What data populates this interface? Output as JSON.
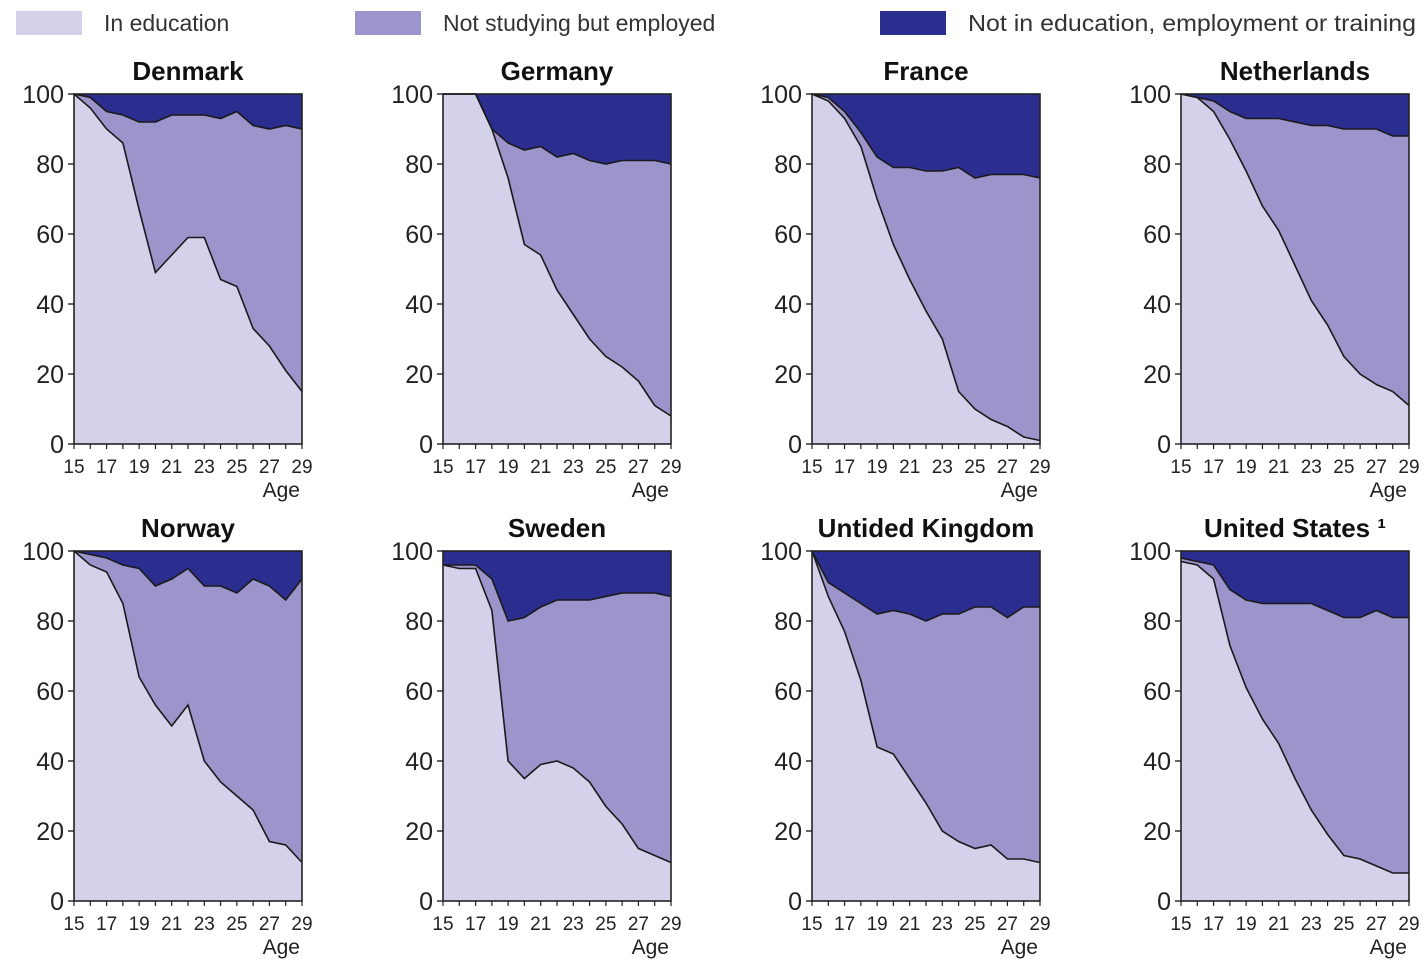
{
  "legend": [
    {
      "label": "In education",
      "color": "#d4d1ea"
    },
    {
      "label": "Not studying but employed",
      "color": "#9c95cb"
    },
    {
      "label": "Not in education, employment or training",
      "color": "#2b2d8f"
    }
  ],
  "chart_data": [
    {
      "type": "area",
      "stacked": true,
      "title": "Denmark",
      "xlabel": "Age",
      "ylabel": "",
      "x": [
        15,
        16,
        17,
        18,
        19,
        20,
        21,
        22,
        23,
        24,
        25,
        26,
        27,
        28,
        29
      ],
      "x_ticks": [
        15,
        17,
        19,
        21,
        23,
        25,
        27,
        29
      ],
      "y_ticks": [
        0,
        20,
        40,
        60,
        80,
        100
      ],
      "ylim": [
        0,
        100
      ],
      "grid": false,
      "series": [
        {
          "name": "In education",
          "values": [
            100,
            96,
            90,
            86,
            67,
            49,
            54,
            59,
            59,
            47,
            45,
            33,
            28,
            21,
            15
          ]
        },
        {
          "name": "Not studying but employed",
          "values": [
            0,
            3,
            5,
            8,
            25,
            43,
            40,
            35,
            35,
            46,
            50,
            58,
            62,
            70,
            75
          ]
        },
        {
          "name": "Not in education, employment or training",
          "values": [
            0,
            1,
            5,
            6,
            8,
            8,
            6,
            6,
            6,
            7,
            5,
            9,
            10,
            9,
            10
          ]
        }
      ]
    },
    {
      "type": "area",
      "stacked": true,
      "title": "Germany",
      "xlabel": "Age",
      "ylabel": "",
      "x": [
        15,
        16,
        17,
        18,
        19,
        20,
        21,
        22,
        23,
        24,
        25,
        26,
        27,
        28,
        29
      ],
      "x_ticks": [
        15,
        17,
        19,
        21,
        23,
        25,
        27,
        29
      ],
      "y_ticks": [
        0,
        20,
        40,
        60,
        80,
        100
      ],
      "ylim": [
        0,
        100
      ],
      "grid": false,
      "series": [
        {
          "name": "In education",
          "values": [
            100,
            100,
            100,
            90,
            76,
            57,
            54,
            44,
            37,
            30,
            25,
            22,
            18,
            11,
            8
          ]
        },
        {
          "name": "Not studying but employed",
          "values": [
            0,
            0,
            0,
            0,
            10,
            27,
            31,
            38,
            46,
            51,
            55,
            59,
            63,
            70,
            72
          ]
        },
        {
          "name": "Not in education, employment or training",
          "values": [
            0,
            0,
            0,
            10,
            14,
            16,
            15,
            18,
            17,
            19,
            20,
            19,
            19,
            19,
            20
          ]
        }
      ]
    },
    {
      "type": "area",
      "stacked": true,
      "title": "France",
      "xlabel": "Age",
      "ylabel": "",
      "x": [
        15,
        16,
        17,
        18,
        19,
        20,
        21,
        22,
        23,
        24,
        25,
        26,
        27,
        28,
        29
      ],
      "x_ticks": [
        15,
        17,
        19,
        21,
        23,
        25,
        27,
        29
      ],
      "y_ticks": [
        0,
        20,
        40,
        60,
        80,
        100
      ],
      "ylim": [
        0,
        100
      ],
      "grid": false,
      "series": [
        {
          "name": "In education",
          "values": [
            100,
            98,
            93,
            85,
            70,
            57,
            47,
            38,
            30,
            15,
            10,
            7,
            5,
            2,
            1
          ]
        },
        {
          "name": "Not studying but employed",
          "values": [
            0,
            1,
            2,
            4,
            12,
            22,
            32,
            40,
            48,
            64,
            66,
            70,
            72,
            75,
            75
          ]
        },
        {
          "name": "Not in education, employment or training",
          "values": [
            0,
            1,
            5,
            11,
            18,
            21,
            21,
            22,
            22,
            21,
            24,
            23,
            23,
            23,
            24
          ]
        }
      ]
    },
    {
      "type": "area",
      "stacked": true,
      "title": "Netherlands",
      "xlabel": "Age",
      "ylabel": "",
      "x": [
        15,
        16,
        17,
        18,
        19,
        20,
        21,
        22,
        23,
        24,
        25,
        26,
        27,
        28,
        29
      ],
      "x_ticks": [
        15,
        17,
        19,
        21,
        23,
        25,
        27,
        29
      ],
      "y_ticks": [
        0,
        20,
        40,
        60,
        80,
        100
      ],
      "ylim": [
        0,
        100
      ],
      "grid": false,
      "series": [
        {
          "name": "In education",
          "values": [
            100,
            99,
            95,
            87,
            78,
            68,
            61,
            51,
            41,
            34,
            25,
            20,
            17,
            15,
            11
          ]
        },
        {
          "name": "Not studying but employed",
          "values": [
            0,
            0,
            3,
            8,
            15,
            25,
            32,
            41,
            50,
            57,
            65,
            70,
            73,
            73,
            77
          ]
        },
        {
          "name": "Not in education, employment or training",
          "values": [
            0,
            1,
            2,
            5,
            7,
            7,
            7,
            8,
            9,
            9,
            10,
            10,
            10,
            12,
            12
          ]
        }
      ]
    },
    {
      "type": "area",
      "stacked": true,
      "title": "Norway",
      "xlabel": "Age",
      "ylabel": "",
      "x": [
        15,
        16,
        17,
        18,
        19,
        20,
        21,
        22,
        23,
        24,
        25,
        26,
        27,
        28,
        29
      ],
      "x_ticks": [
        15,
        17,
        19,
        21,
        23,
        25,
        27,
        29
      ],
      "y_ticks": [
        0,
        20,
        40,
        60,
        80,
        100
      ],
      "ylim": [
        0,
        100
      ],
      "grid": false,
      "series": [
        {
          "name": "In education",
          "values": [
            100,
            96,
            94,
            85,
            64,
            56,
            50,
            56,
            40,
            34,
            30,
            26,
            17,
            16,
            11
          ]
        },
        {
          "name": "Not studying but employed",
          "values": [
            0,
            3,
            4,
            11,
            31,
            34,
            42,
            39,
            50,
            56,
            58,
            66,
            73,
            70,
            81
          ]
        },
        {
          "name": "Not in education, employment or training",
          "values": [
            0,
            1,
            2,
            4,
            5,
            10,
            8,
            5,
            10,
            10,
            12,
            8,
            10,
            14,
            8
          ]
        }
      ]
    },
    {
      "type": "area",
      "stacked": true,
      "title": "Sweden",
      "xlabel": "Age",
      "ylabel": "",
      "x": [
        15,
        16,
        17,
        18,
        19,
        20,
        21,
        22,
        23,
        24,
        25,
        26,
        27,
        28,
        29
      ],
      "x_ticks": [
        15,
        17,
        19,
        21,
        23,
        25,
        27,
        29
      ],
      "y_ticks": [
        0,
        20,
        40,
        60,
        80,
        100
      ],
      "ylim": [
        0,
        100
      ],
      "grid": false,
      "series": [
        {
          "name": "In education",
          "values": [
            96,
            95,
            95,
            83,
            40,
            35,
            39,
            40,
            38,
            34,
            27,
            22,
            15,
            13,
            11
          ]
        },
        {
          "name": "Not studying but employed",
          "values": [
            0,
            1,
            1,
            9,
            40,
            46,
            45,
            46,
            48,
            52,
            60,
            66,
            73,
            75,
            76
          ]
        },
        {
          "name": "Not in education, employment or training",
          "values": [
            4,
            4,
            4,
            8,
            20,
            19,
            16,
            14,
            14,
            14,
            13,
            12,
            12,
            12,
            13
          ]
        }
      ]
    },
    {
      "type": "area",
      "stacked": true,
      "title": "Untided Kingdom",
      "xlabel": "Age",
      "ylabel": "",
      "x": [
        15,
        16,
        17,
        18,
        19,
        20,
        21,
        22,
        23,
        24,
        25,
        26,
        27,
        28,
        29
      ],
      "x_ticks": [
        15,
        17,
        19,
        21,
        23,
        25,
        27,
        29
      ],
      "y_ticks": [
        0,
        20,
        40,
        60,
        80,
        100
      ],
      "ylim": [
        0,
        100
      ],
      "grid": false,
      "series": [
        {
          "name": "In education",
          "values": [
            100,
            87,
            77,
            63,
            44,
            42,
            35,
            28,
            20,
            17,
            15,
            16,
            12,
            12,
            11
          ]
        },
        {
          "name": "Not studying but employed",
          "values": [
            0,
            4,
            11,
            22,
            38,
            41,
            47,
            52,
            62,
            65,
            69,
            68,
            69,
            72,
            73
          ]
        },
        {
          "name": "Not in education, employment or training",
          "values": [
            0,
            9,
            12,
            15,
            18,
            17,
            18,
            20,
            18,
            18,
            16,
            16,
            19,
            16,
            16
          ]
        }
      ]
    },
    {
      "type": "area",
      "stacked": true,
      "title": "United States ¹",
      "xlabel": "Age",
      "ylabel": "",
      "x": [
        15,
        16,
        17,
        18,
        19,
        20,
        21,
        22,
        23,
        24,
        25,
        26,
        27,
        28,
        29
      ],
      "x_ticks": [
        15,
        17,
        19,
        21,
        23,
        25,
        27,
        29
      ],
      "y_ticks": [
        0,
        20,
        40,
        60,
        80,
        100
      ],
      "ylim": [
        0,
        100
      ],
      "grid": false,
      "series": [
        {
          "name": "In education",
          "values": [
            97,
            96,
            92,
            73,
            61,
            52,
            45,
            35,
            26,
            19,
            13,
            12,
            10,
            8,
            8
          ]
        },
        {
          "name": "Not studying but employed",
          "values": [
            1,
            1,
            4,
            16,
            25,
            33,
            40,
            50,
            59,
            64,
            68,
            69,
            73,
            73,
            73
          ]
        },
        {
          "name": "Not in education, employment or training",
          "values": [
            2,
            3,
            4,
            11,
            14,
            15,
            15,
            15,
            15,
            17,
            19,
            19,
            17,
            19,
            19
          ]
        }
      ]
    }
  ]
}
